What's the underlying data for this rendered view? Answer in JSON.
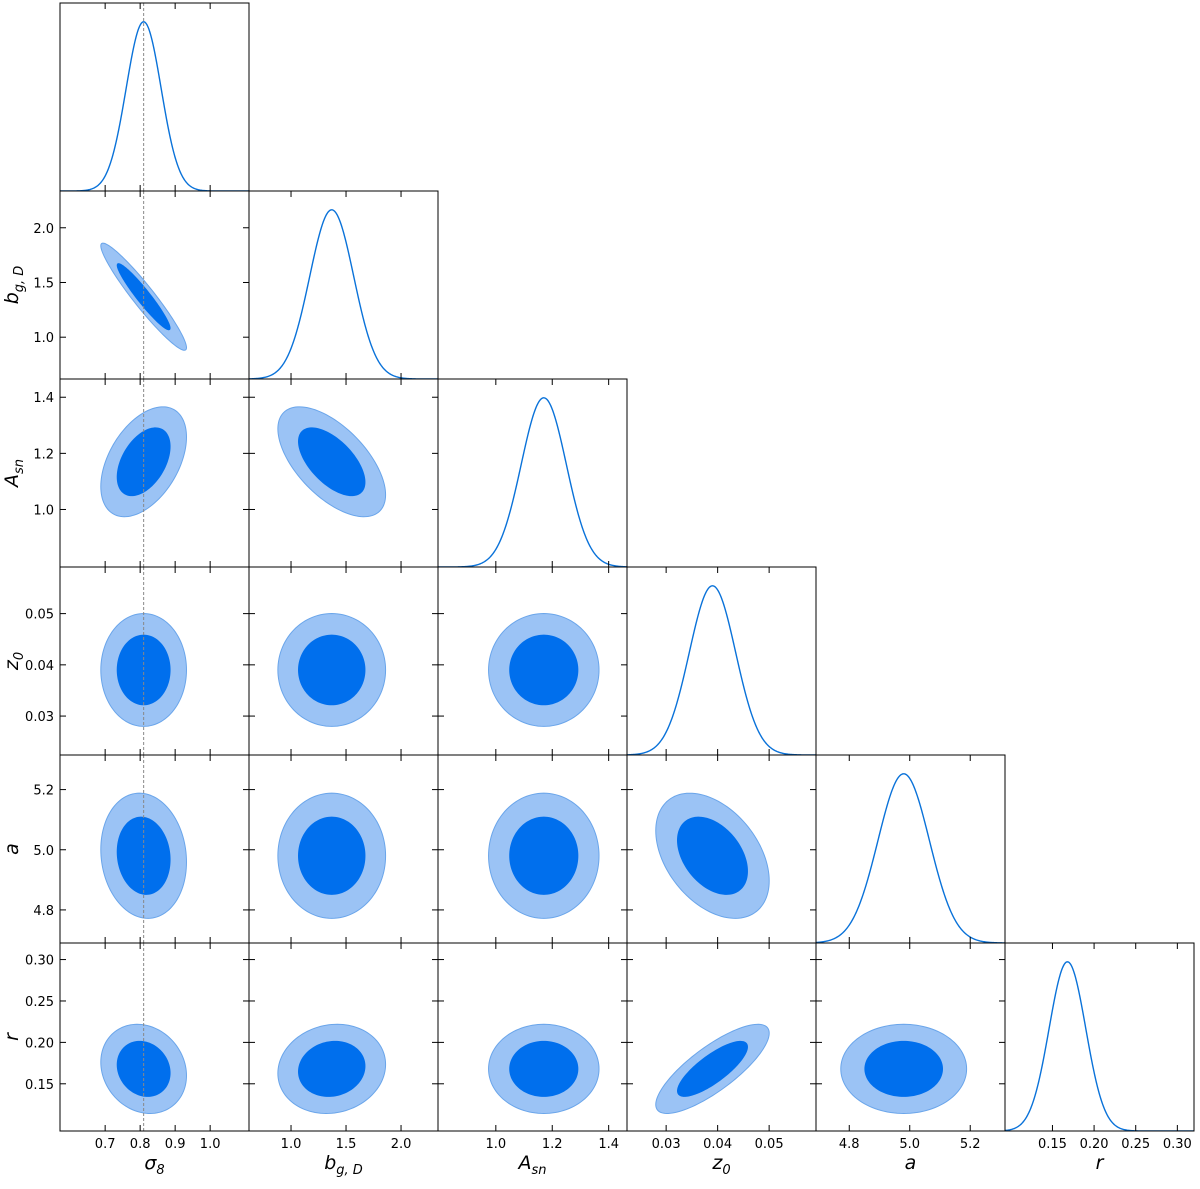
{
  "chart_data": {
    "type": "corner",
    "params": [
      {
        "label": "σ",
        "label_sub": "8",
        "lim": [
          0.571,
          1.111
        ],
        "ticks": [
          0.7,
          0.8,
          0.9,
          {
            "value": 1,
            "label": "1.0"
          }
        ],
        "mean": 0.81,
        "sd": 0.05,
        "reference": 0.81
      },
      {
        "label": "b",
        "label_sub": "g, D",
        "lim": [
          0.618,
          2.336
        ],
        "ticks": [
          {
            "value": 1,
            "label": "1.0"
          },
          1.5,
          {
            "value": 2,
            "label": "2.0"
          }
        ],
        "mean": 1.37,
        "sd": 0.2
      },
      {
        "label": "A",
        "label_sub": "sn",
        "lim": [
          0.795,
          1.465
        ],
        "ticks": [
          {
            "value": 1,
            "label": "1.0"
          },
          1.2,
          1.4
        ],
        "mean": 1.17,
        "sd": 0.08
      },
      {
        "label": "z",
        "label_sub": "0",
        "lim": [
          0.0224,
          0.0591
        ],
        "ticks": [
          0.03,
          0.04,
          0.05
        ],
        "mean": 0.039,
        "sd": 0.0045
      },
      {
        "label": "a",
        "lim": [
          4.69,
          5.315
        ],
        "ticks": [
          4.8,
          {
            "value": 5,
            "label": "5.0"
          },
          5.2
        ],
        "mean": 4.98,
        "sd": 0.085
      },
      {
        "label": "r",
        "lim": [
          0.093,
          0.32
        ],
        "ticks": [
          0.15,
          {
            "value": 0.2,
            "label": "0.20"
          },
          0.25,
          {
            "value": 0.3,
            "label": "0.30"
          }
        ],
        "mean": 0.168,
        "sd": 0.022
      }
    ],
    "correlations": [
      [
        -0.95
      ],
      [
        0.45,
        -0.6
      ],
      [
        0,
        0,
        0
      ],
      [
        -0.1,
        0,
        0,
        -0.4
      ],
      [
        -0.15,
        0.1,
        0,
        0.8,
        0
      ]
    ],
    "contour_levels": [
      0.68,
      0.95
    ],
    "line_color": "#0a72d9",
    "inner_color": "#006fed",
    "outer_color": "#9bc3f5",
    "outer_stroke": "#6aa5ea"
  }
}
